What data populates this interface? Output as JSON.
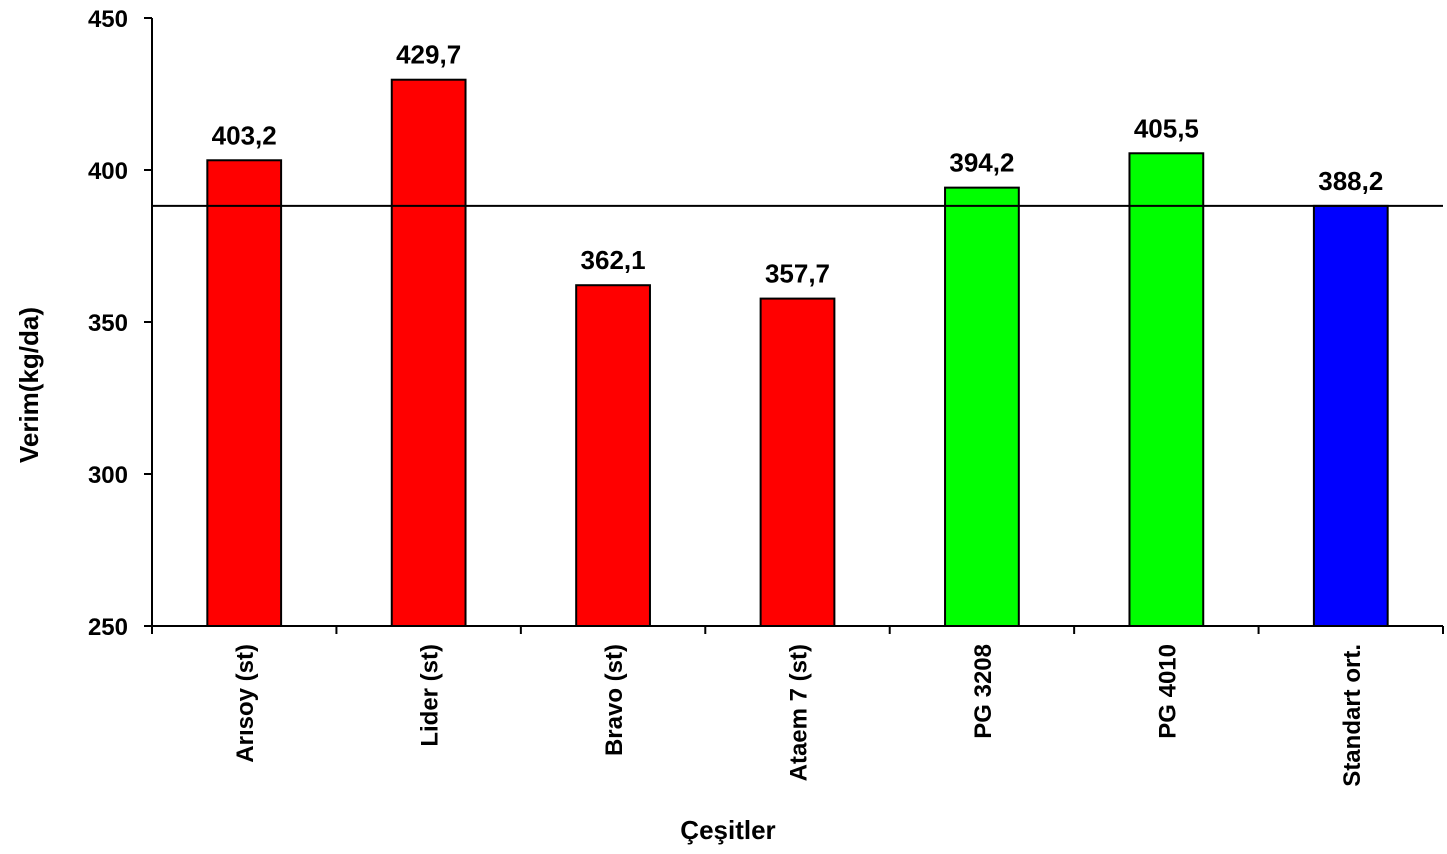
{
  "chart_data": {
    "type": "bar",
    "title": "",
    "xlabel": "Çeşitler",
    "ylabel": "Verim(kg/da)",
    "ylim": [
      250,
      450
    ],
    "yticks": [
      250,
      300,
      350,
      400,
      450
    ],
    "grid": false,
    "legend": "none",
    "categories": [
      "Arısoy (st)",
      "Lider (st)",
      "Bravo (st)",
      "Ataem 7 (st)",
      "PG 3208",
      "PG 4010",
      "Standart ort."
    ],
    "values": [
      403.2,
      429.7,
      362.1,
      357.7,
      394.2,
      405.5,
      388.2
    ],
    "value_labels": [
      "403,2",
      "429,7",
      "362,1",
      "357,7",
      "394,2",
      "405,5",
      "388,2"
    ],
    "bar_colors": [
      "#ff0000",
      "#ff0000",
      "#ff0000",
      "#ff0000",
      "#00ff00",
      "#00ff00",
      "#0000ff"
    ],
    "reference_line": 388.2
  }
}
